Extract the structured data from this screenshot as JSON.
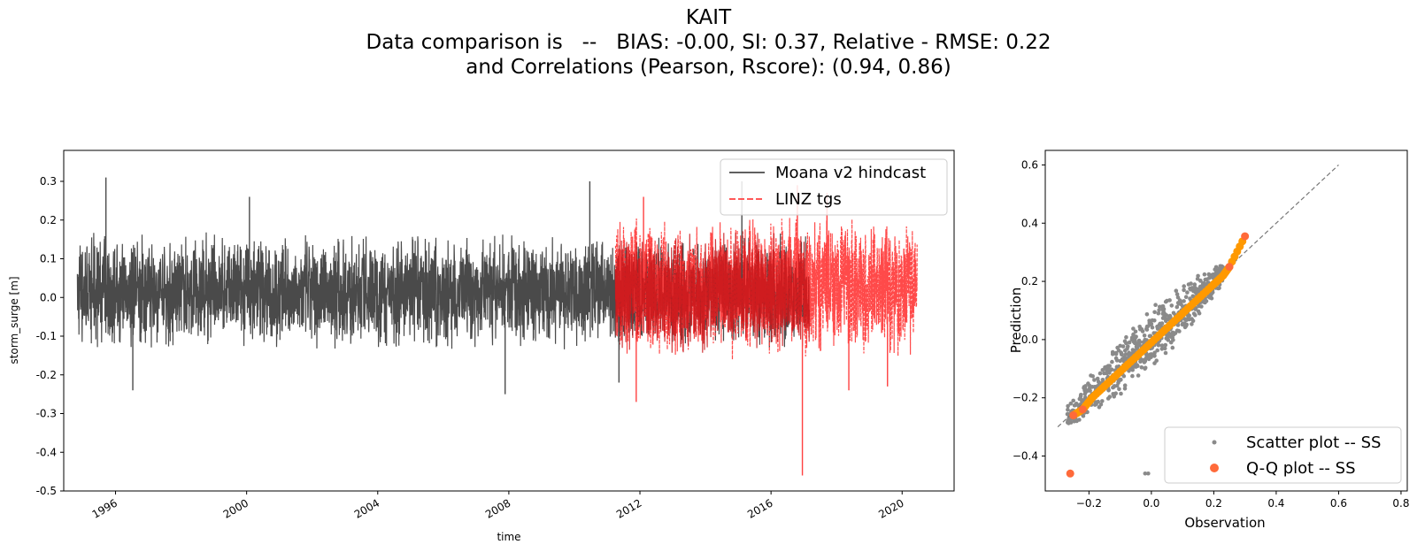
{
  "title": {
    "line1": "KAIT",
    "line2": "Data comparison is   --   BIAS: -0.00, SI: 0.37, Relative - RMSE: 0.22",
    "line3": "and Correlations (Pearson, Rscore): (0.94, 0.86)"
  },
  "colors": {
    "model": "#4a4a4a",
    "obs": "#ff4040",
    "overlap": "#c8161a",
    "scatter": "#8a8a8a",
    "qq": "#ff6a3a",
    "qq_inner": "#ff9900",
    "identity": "#777777"
  },
  "chart_data": [
    {
      "type": "line",
      "title": "",
      "xlabel": "time",
      "ylabel": "storm_surge [m]",
      "xlim": [
        "1994-06-01",
        "2021-08-01"
      ],
      "ylim": [
        -0.5,
        0.38
      ],
      "x_ticks": [
        "1996",
        "2000",
        "2004",
        "2008",
        "2012",
        "2016",
        "2020"
      ],
      "y_ticks": [
        "-0.5",
        "-0.4",
        "-0.3",
        "-0.2",
        "-0.1",
        "0.0",
        "0.1",
        "0.2",
        "0.3"
      ],
      "legend_position": "top-right",
      "series": [
        {
          "name": "Moana v2 hindcast",
          "style": "solid",
          "x_range": [
            "1994-11-01",
            "2017-03-01"
          ],
          "typical_range": [
            -0.14,
            0.17
          ],
          "peaks": [
            {
              "x": "1995-09-15",
              "y": 0.31
            },
            {
              "x": "1996-07-10",
              "y": -0.24
            },
            {
              "x": "2000-02-01",
              "y": 0.26
            },
            {
              "x": "2007-11-20",
              "y": -0.25
            },
            {
              "x": "2010-06-20",
              "y": 0.3
            },
            {
              "x": "2011-05-10",
              "y": -0.22
            },
            {
              "x": "2015-02-10",
              "y": 0.3
            }
          ]
        },
        {
          "name": "LINZ tgs",
          "style": "dashed",
          "x_range": [
            "2011-04-01",
            "2020-06-15"
          ],
          "typical_range": [
            -0.17,
            0.22
          ],
          "peaks": [
            {
              "x": "2011-11-20",
              "y": -0.27
            },
            {
              "x": "2012-02-10",
              "y": 0.26
            },
            {
              "x": "2016-10-20",
              "y": 0.29
            },
            {
              "x": "2017-09-15",
              "y": 0.27
            },
            {
              "x": "2018-05-15",
              "y": -0.24
            },
            {
              "x": "2019-07-20",
              "y": -0.23
            },
            {
              "x": "2016-12-15",
              "y": -0.46
            }
          ]
        }
      ]
    },
    {
      "type": "scatter",
      "title": "",
      "xlabel": "Observation",
      "ylabel": "Prediction",
      "xlim": [
        -0.34,
        0.82
      ],
      "ylim": [
        -0.52,
        0.65
      ],
      "x_ticks": [
        "−0.2",
        "0.0",
        "0.2",
        "0.4",
        "0.6",
        "0.8"
      ],
      "y_ticks": [
        "−0.4",
        "−0.2",
        "0.0",
        "0.2",
        "0.4",
        "0.6"
      ],
      "identity_line": {
        "from": [
          -0.3,
          -0.3
        ],
        "to": [
          0.6,
          0.6
        ]
      },
      "legend_position": "bottom-right",
      "series": [
        {
          "name": "Scatter plot -- SS",
          "cloud": {
            "x_range": [
              -0.27,
              0.23
            ],
            "spread": 0.07
          },
          "outliers": [
            {
              "x": -0.02,
              "y": -0.46
            },
            {
              "x": -0.01,
              "y": -0.46
            }
          ]
        },
        {
          "name": "Q-Q plot -- SS",
          "points": [
            {
              "x": -0.26,
              "y": -0.46
            },
            {
              "x": -0.25,
              "y": -0.26
            },
            {
              "x": -0.22,
              "y": -0.24
            },
            {
              "x": -0.19,
              "y": -0.2
            },
            {
              "x": -0.15,
              "y": -0.16
            },
            {
              "x": -0.1,
              "y": -0.11
            },
            {
              "x": -0.05,
              "y": -0.06
            },
            {
              "x": 0.0,
              "y": -0.01
            },
            {
              "x": 0.05,
              "y": 0.04
            },
            {
              "x": 0.1,
              "y": 0.09
            },
            {
              "x": 0.15,
              "y": 0.14
            },
            {
              "x": 0.2,
              "y": 0.19
            },
            {
              "x": 0.23,
              "y": 0.22
            },
            {
              "x": 0.25,
              "y": 0.25
            },
            {
              "x": 0.3,
              "y": 0.355
            }
          ]
        }
      ]
    }
  ]
}
